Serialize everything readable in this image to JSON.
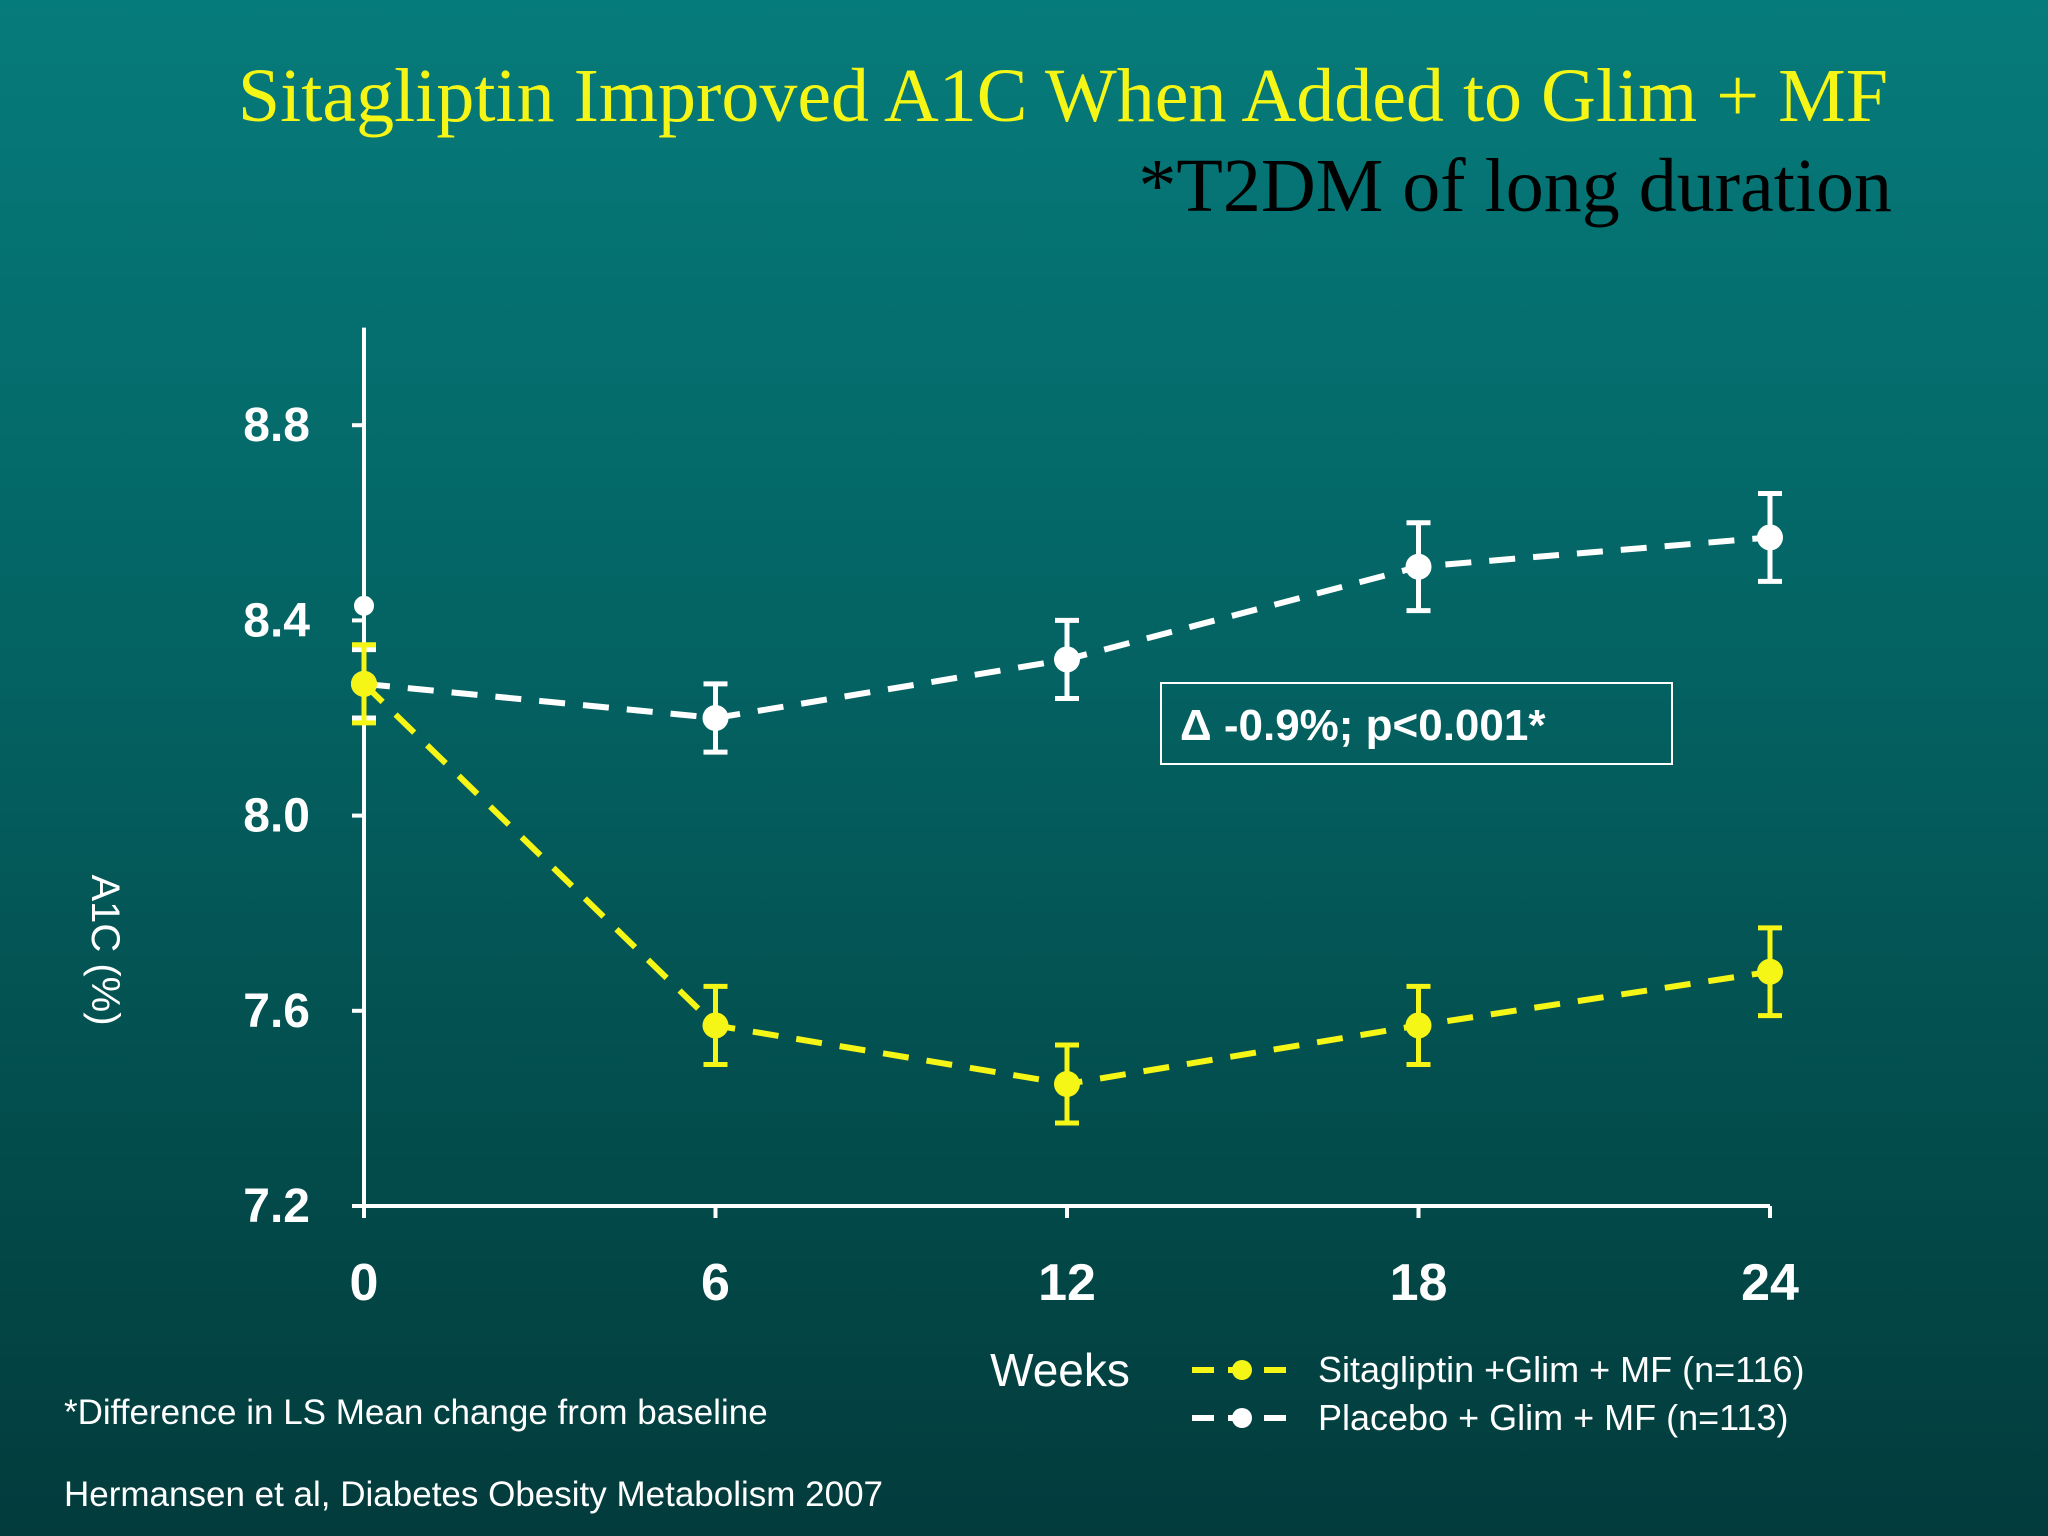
{
  "title": "Sitagliptin Improved A1C When Added to Glim + MF",
  "subtitle": "*T2DM of long duration",
  "footnote": "*Difference in LS Mean change from baseline",
  "citation": "Hermansen et al, Diabetes Obesity Metabolism 2007",
  "colors": {
    "sitagliptin": "#f5f516",
    "placebo": "#ffffff",
    "title": "#f5f516",
    "subtitle": "#000000"
  },
  "chart_data": {
    "type": "line",
    "title": "Sitagliptin Improved A1C When Added to Glim + MF",
    "subtitle": "*T2DM of long duration",
    "xlabel": "Weeks",
    "ylabel": "A1C (%)",
    "x": [
      0,
      6,
      12,
      18,
      24
    ],
    "x_ticks": [
      "0",
      "6",
      "12",
      "18",
      "24"
    ],
    "y_ticks": [
      "7.2",
      "7.6",
      "8.0",
      "8.4",
      "8.8"
    ],
    "xlim": [
      0,
      24
    ],
    "ylim": [
      7.2,
      9.0
    ],
    "grid": false,
    "legend_position": "bottom-right",
    "series": [
      {
        "name": "Sitagliptin +Glim + MF (n=116)",
        "color": "#f5f516",
        "line_style": "dashed",
        "values": [
          8.27,
          7.57,
          7.45,
          7.57,
          7.68
        ],
        "error_low": [
          8.19,
          7.49,
          7.37,
          7.49,
          7.59
        ],
        "error_high": [
          8.35,
          7.65,
          7.53,
          7.65,
          7.77
        ]
      },
      {
        "name": "Placebo + Glim + MF (n=113)",
        "color": "#ffffff",
        "line_style": "dashed",
        "values": [
          8.27,
          8.2,
          8.32,
          8.51,
          8.57
        ],
        "error_low": [
          8.2,
          8.13,
          8.24,
          8.42,
          8.48
        ],
        "error_high": [
          8.34,
          8.27,
          8.4,
          8.6,
          8.66
        ]
      }
    ],
    "baseline_marker": {
      "x": 0,
      "y": 8.43
    },
    "annotations": [
      {
        "text": "Δ -0.9%; p<0.001*"
      }
    ]
  }
}
